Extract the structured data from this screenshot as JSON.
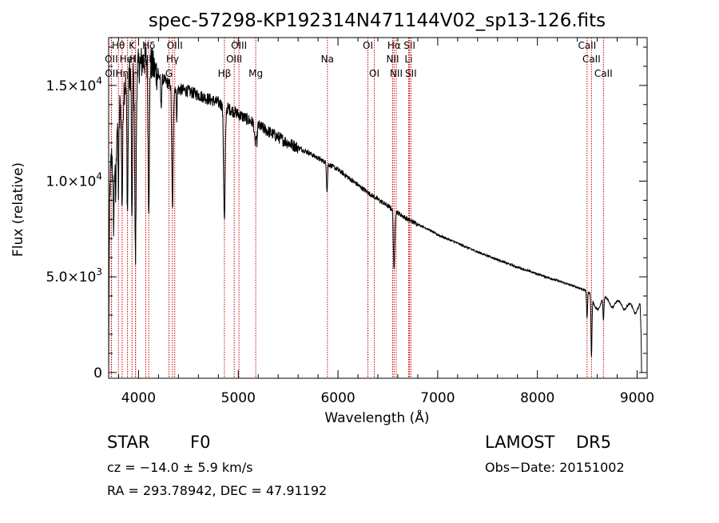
{
  "chart_data": {
    "type": "line",
    "title": "spec-57298-KP192314N471144V02_sp13-126.fits",
    "xlabel": "Wavelength (Å)",
    "ylabel": "Flux (relative)",
    "xlim": [
      3700,
      9100
    ],
    "ylim": [
      -300,
      17500
    ],
    "x_ticks": [
      {
        "value": 4000,
        "label": "4000"
      },
      {
        "value": 5000,
        "label": "5000"
      },
      {
        "value": 6000,
        "label": "6000"
      },
      {
        "value": 7000,
        "label": "7000"
      },
      {
        "value": 8000,
        "label": "8000"
      },
      {
        "value": 9000,
        "label": "9000"
      }
    ],
    "y_ticks": [
      {
        "value": 0,
        "label": "0",
        "mantissa": "",
        "exponent": ""
      },
      {
        "value": 5000,
        "label": "5.0×10³",
        "mantissa": "5.0×10",
        "exponent": "3"
      },
      {
        "value": 10000,
        "label": "1.0×10⁴",
        "mantissa": "1.0×10",
        "exponent": "4"
      },
      {
        "value": 15000,
        "label": "1.5×10⁴",
        "mantissa": "1.5×10",
        "exponent": "4"
      }
    ],
    "grid": false,
    "line_color": "#000000",
    "marker_color": "#cc0000",
    "continuum": [
      [
        3700,
        0
      ],
      [
        3705,
        5500
      ],
      [
        3712,
        9500
      ],
      [
        3725,
        11000
      ],
      [
        3760,
        12200
      ],
      [
        3800,
        13600
      ],
      [
        3850,
        14800
      ],
      [
        3900,
        15600
      ],
      [
        3950,
        15800
      ],
      [
        4000,
        16000
      ],
      [
        4050,
        16300
      ],
      [
        4100,
        16500
      ],
      [
        4150,
        15900
      ],
      [
        4200,
        15500
      ],
      [
        4300,
        15100
      ],
      [
        4400,
        14800
      ],
      [
        4500,
        14700
      ],
      [
        4600,
        14500
      ],
      [
        4700,
        14300
      ],
      [
        4800,
        14100
      ],
      [
        4900,
        13800
      ],
      [
        5000,
        13500
      ],
      [
        5100,
        13200
      ],
      [
        5200,
        12900
      ],
      [
        5300,
        12600
      ],
      [
        5400,
        12300
      ],
      [
        5500,
        12000
      ],
      [
        5600,
        11750
      ],
      [
        5700,
        11500
      ],
      [
        5800,
        11200
      ],
      [
        5900,
        10900
      ],
      [
        6000,
        10600
      ],
      [
        6100,
        10200
      ],
      [
        6200,
        9800
      ],
      [
        6300,
        9400
      ],
      [
        6400,
        9050
      ],
      [
        6500,
        8700
      ],
      [
        6600,
        8350
      ],
      [
        6700,
        8000
      ],
      [
        6800,
        7750
      ],
      [
        6900,
        7500
      ],
      [
        7000,
        7200
      ],
      [
        7200,
        6750
      ],
      [
        7400,
        6300
      ],
      [
        7600,
        5900
      ],
      [
        7800,
        5500
      ],
      [
        8000,
        5150
      ],
      [
        8200,
        4800
      ],
      [
        8400,
        4450
      ],
      [
        8500,
        4250
      ],
      [
        8600,
        4050
      ],
      [
        8800,
        3800
      ],
      [
        8950,
        3600
      ],
      [
        9000,
        3500
      ],
      [
        9030,
        3600
      ],
      [
        9040,
        2000
      ],
      [
        9045,
        0
      ]
    ],
    "absorption": [
      {
        "center": 3750,
        "depth": 4000,
        "width": 6
      },
      {
        "center": 3770,
        "depth": 3500,
        "width": 5
      },
      {
        "center": 3798,
        "depth": 4000,
        "width": 5
      },
      {
        "center": 3835,
        "depth": 5500,
        "width": 6
      },
      {
        "center": 3889,
        "depth": 7000,
        "width": 6
      },
      {
        "center": 3934,
        "depth": 8500,
        "width": 5
      },
      {
        "center": 3969,
        "depth": 10000,
        "width": 7
      },
      {
        "center": 4102,
        "depth": 7500,
        "width": 7
      },
      {
        "center": 4226,
        "depth": 1500,
        "width": 5
      },
      {
        "center": 4340,
        "depth": 6500,
        "width": 7
      },
      {
        "center": 4383,
        "depth": 1500,
        "width": 4
      },
      {
        "center": 4861,
        "depth": 6000,
        "width": 8
      },
      {
        "center": 5167,
        "depth": 1000,
        "width": 6
      },
      {
        "center": 5184,
        "depth": 1000,
        "width": 6
      },
      {
        "center": 5890,
        "depth": 1400,
        "width": 5
      },
      {
        "center": 6563,
        "depth": 3200,
        "width": 7
      },
      {
        "center": 8498,
        "depth": 1400,
        "width": 5
      },
      {
        "center": 8542,
        "depth": 3200,
        "width": 5
      },
      {
        "center": 8662,
        "depth": 1200,
        "width": 5
      }
    ],
    "bumps": [
      {
        "x": 8580,
        "amp": -600,
        "w": 25
      },
      {
        "x": 8620,
        "amp": -500,
        "w": 20
      },
      {
        "x": 8750,
        "amp": -450,
        "w": 25
      },
      {
        "x": 8870,
        "amp": -400,
        "w": 25
      },
      {
        "x": 8980,
        "amp": -450,
        "w": 20
      }
    ],
    "spectral_lines": [
      {
        "label": "Hθ",
        "wavelength": 3798,
        "row": 1
      },
      {
        "label": "OII",
        "wavelength": 3727,
        "row": 2
      },
      {
        "label": "OII",
        "wavelength": 3729,
        "row": 3
      },
      {
        "label": "Hη",
        "wavelength": 3835,
        "row": 3
      },
      {
        "label": "HeI",
        "wavelength": 3889,
        "row": 2
      },
      {
        "label": "K",
        "wavelength": 3934,
        "row": 1
      },
      {
        "label": "H",
        "wavelength": 3969,
        "row": 3
      },
      {
        "label": "Hε",
        "wavelength": 3970,
        "row": 2
      },
      {
        "label": "Hδ",
        "wavelength": 4102,
        "row": 1
      },
      {
        "label": "SII",
        "wavelength": 4072,
        "row": 2
      },
      {
        "label": "G",
        "wavelength": 4305,
        "row": 3
      },
      {
        "label": "Hγ",
        "wavelength": 4340,
        "row": 2
      },
      {
        "label": "OIII",
        "wavelength": 4363,
        "row": 1
      },
      {
        "label": "Hβ",
        "wavelength": 4861,
        "row": 3
      },
      {
        "label": "OIII",
        "wavelength": 4959,
        "row": 2
      },
      {
        "label": "OIII",
        "wavelength": 5007,
        "row": 1
      },
      {
        "label": "Mg",
        "wavelength": 5175,
        "row": 3
      },
      {
        "label": "Na",
        "wavelength": 5894,
        "row": 2
      },
      {
        "label": "OI",
        "wavelength": 6300,
        "row": 1
      },
      {
        "label": "OI",
        "wavelength": 6364,
        "row": 3
      },
      {
        "label": "Hα",
        "wavelength": 6563,
        "row": 1
      },
      {
        "label": "NII",
        "wavelength": 6548,
        "row": 2
      },
      {
        "label": "NII",
        "wavelength": 6584,
        "row": 3
      },
      {
        "label": "SII",
        "wavelength": 6717,
        "row": 1
      },
      {
        "label": "Li",
        "wavelength": 6708,
        "row": 2
      },
      {
        "label": "SII",
        "wavelength": 6731,
        "row": 3
      },
      {
        "label": "CaII",
        "wavelength": 8498,
        "row": 1
      },
      {
        "label": "CaII",
        "wavelength": 8542,
        "row": 2
      },
      {
        "label": "CaII",
        "wavelength": 8662,
        "row": 3
      }
    ]
  },
  "footer": {
    "object_class": "STAR",
    "subclass": "F0",
    "survey": "LAMOST",
    "release": "DR5",
    "redshift_text": "cz = −14.0 ± 5.9 km/s",
    "obs_date_text": "Obs−Date: 20151002",
    "coords_text": "RA = 293.78942, DEC =  47.91192"
  }
}
